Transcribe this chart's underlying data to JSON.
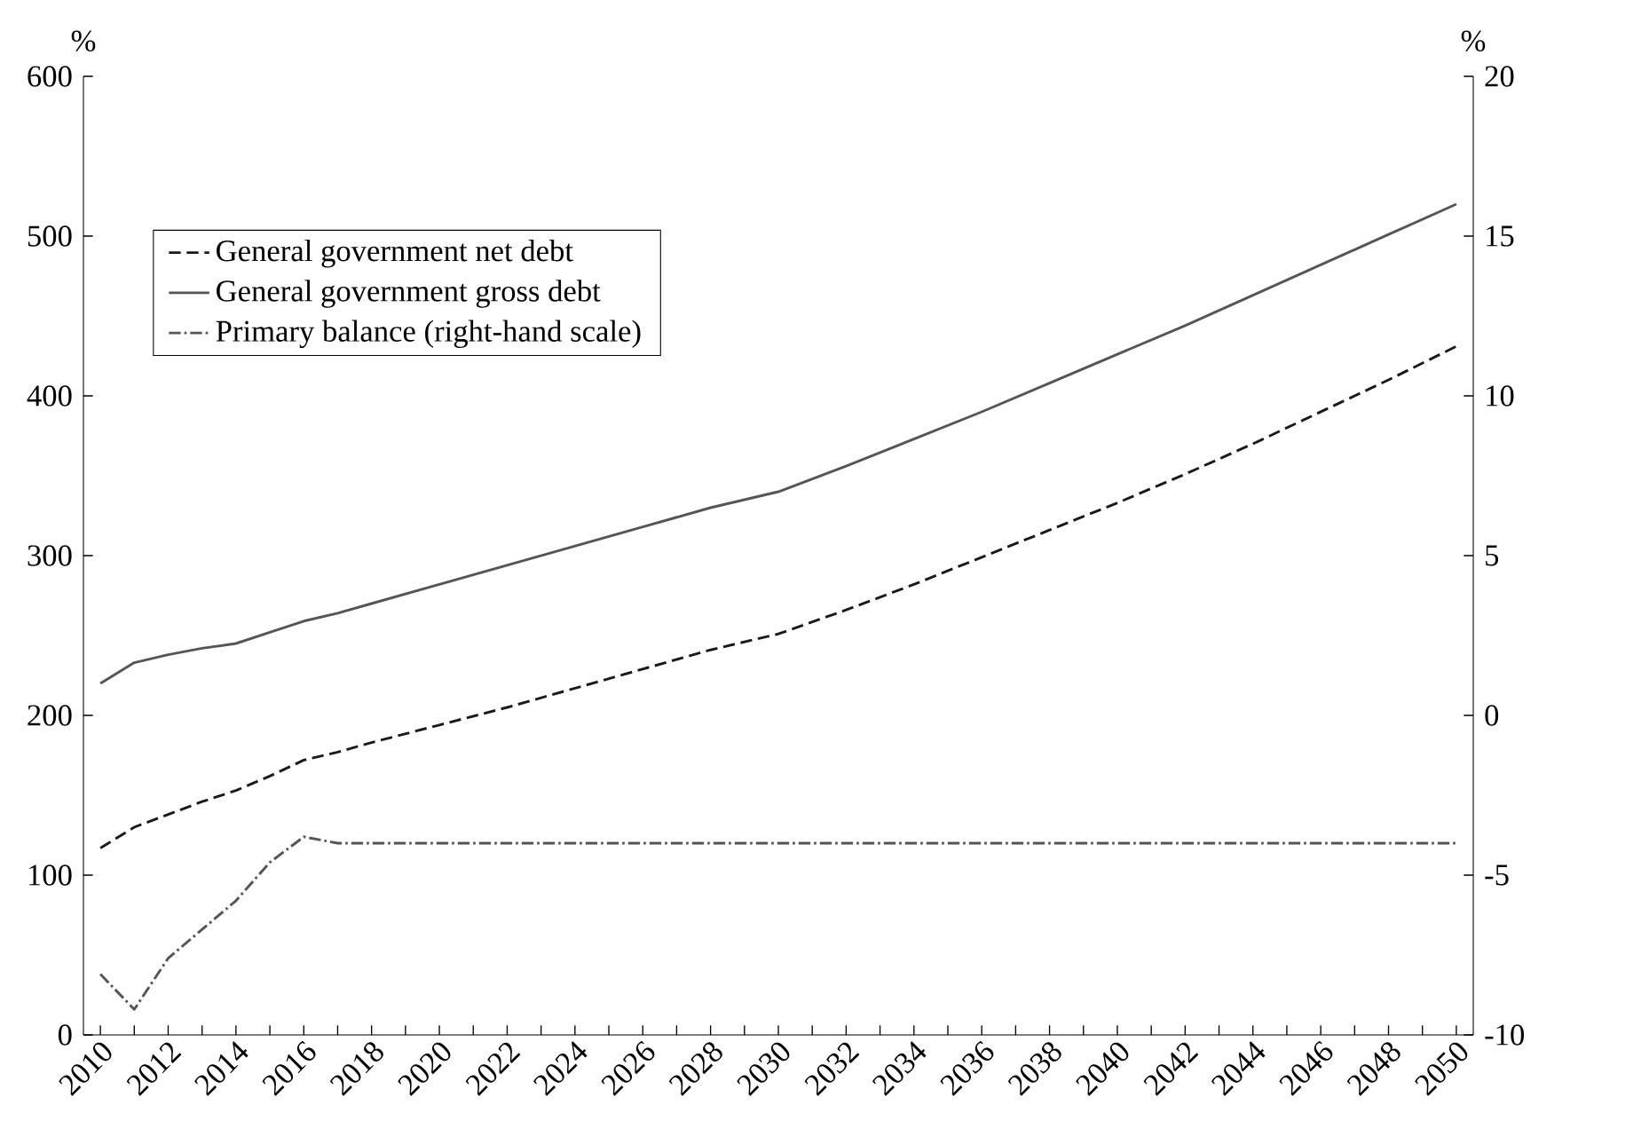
{
  "chart_data": {
    "type": "line",
    "x": [
      2010,
      2011,
      2012,
      2013,
      2014,
      2015,
      2016,
      2017,
      2018,
      2020,
      2022,
      2024,
      2026,
      2028,
      2030,
      2032,
      2034,
      2036,
      2038,
      2040,
      2042,
      2044,
      2046,
      2048,
      2050
    ],
    "series": [
      {
        "name": "General government net debt",
        "color": "#1a1a1a",
        "line_style": "dashed",
        "values": [
          117,
          130,
          138,
          146,
          153,
          162,
          172,
          177,
          183,
          194,
          205,
          217,
          229,
          241,
          251,
          266,
          282,
          299,
          316,
          333,
          351,
          370,
          390,
          410,
          431
        ]
      },
      {
        "name": "General government gross debt",
        "color": "#555555",
        "line_style": "solid",
        "values": [
          220,
          233,
          238,
          242,
          245,
          252,
          259,
          264,
          270,
          282,
          294,
          306,
          318,
          330,
          340,
          356,
          373,
          390,
          408,
          426,
          444,
          463,
          482,
          501,
          520
        ]
      },
      {
        "name": "Primary balance (right-hand scale)",
        "color": "#555555",
        "line_style": "dashdot",
        "axis": "y2",
        "x": [
          2010,
          2011,
          2012,
          2013,
          2014,
          2015,
          2016,
          2017,
          2018,
          2050
        ],
        "values": [
          -8.1,
          -9.2,
          -7.6,
          -6.7,
          -5.8,
          -4.6,
          -3.8,
          -4.0,
          -4.0,
          -4.0
        ]
      }
    ],
    "ylabel": "%",
    "y2label": "%",
    "xlim": [
      2009.5,
      2050.5
    ],
    "xticks": [
      2010,
      {
        "value": 2011,
        "label": null
      },
      2012,
      {
        "value": 2013,
        "label": null
      },
      2014,
      {
        "value": 2015,
        "label": null
      },
      2016,
      {
        "value": 2017,
        "label": null
      },
      2018,
      {
        "value": 2019,
        "label": null
      },
      2020,
      {
        "value": 2021,
        "label": null
      },
      2022,
      {
        "value": 2023,
        "label": null
      },
      2024,
      {
        "value": 2025,
        "label": null
      },
      2026,
      {
        "value": 2027,
        "label": null
      },
      2028,
      {
        "value": 2029,
        "label": null
      },
      2030,
      {
        "value": 2031,
        "label": null
      },
      2032,
      {
        "value": 2033,
        "label": null
      },
      2034,
      {
        "value": 2035,
        "label": null
      },
      2036,
      {
        "value": 2037,
        "label": null
      },
      2038,
      {
        "value": 2039,
        "label": null
      },
      2040,
      {
        "value": 2041,
        "label": null
      },
      2042,
      {
        "value": 2043,
        "label": null
      },
      2044,
      {
        "value": 2045,
        "label": null
      },
      2046,
      {
        "value": 2047,
        "label": null
      },
      2048,
      {
        "value": 2049,
        "label": null
      },
      2050
    ],
    "ylim": [
      0,
      600
    ],
    "yticks": [
      0,
      100,
      200,
      300,
      400,
      500,
      600
    ],
    "y2lim": [
      -10,
      20
    ],
    "y2ticks": [
      -10,
      -5,
      0,
      5,
      10,
      15,
      20
    ],
    "legend": "top left",
    "grid": false,
    "marker": "none"
  }
}
